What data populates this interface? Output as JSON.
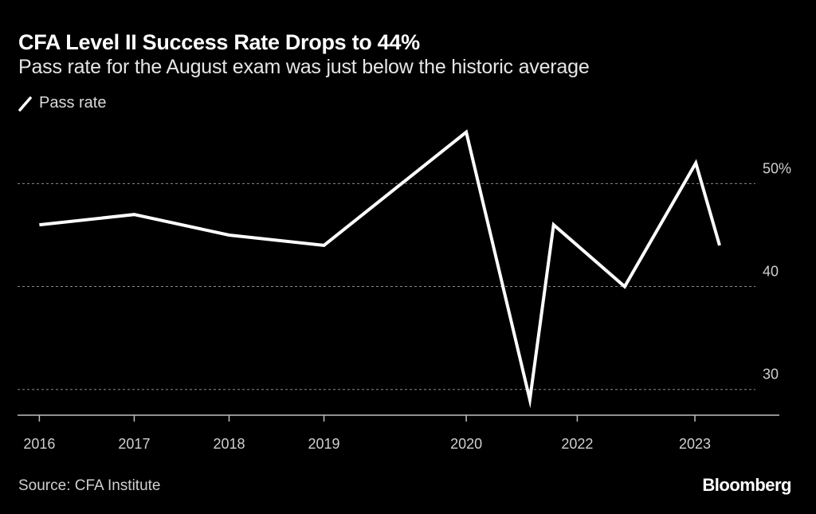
{
  "header": {
    "title": "CFA Level II Success Rate Drops to 44%",
    "subtitle": "Pass rate for the August exam was just below the historic average"
  },
  "footer": {
    "source": "Source: CFA Institute",
    "brand": "Bloomberg"
  },
  "colors": {
    "background": "#000000",
    "line": "#ffffff",
    "grid": "#8c8c8c",
    "text_muted": "#cfcfcf"
  },
  "chart_data": {
    "type": "line",
    "title": "CFA Level II Success Rate Drops to 44%",
    "subtitle": "Pass rate for the August exam was just below the historic average",
    "xlabel": "",
    "ylabel": "",
    "legend": {
      "entries": [
        "Pass rate"
      ],
      "placement": "top-left"
    },
    "grid": true,
    "y_axis": {
      "side": "right",
      "ticks": [
        30,
        40,
        50
      ],
      "tick_labels": [
        "30",
        "40",
        "50%"
      ],
      "ylim": [
        27.5,
        57
      ]
    },
    "x_axis": {
      "ticks": [
        2016.0,
        2017.0,
        2018.0,
        2019.0,
        2020.5,
        2021.67,
        2022.91
      ],
      "tick_labels": [
        "2016",
        "2017",
        "2018",
        "2019",
        "2020",
        "2022",
        "2023"
      ],
      "xlim": [
        2015.77,
        2023.8
      ]
    },
    "series": [
      {
        "name": "Pass rate",
        "x": [
          2016.0,
          2017.0,
          2018.0,
          2019.0,
          2020.5,
          2021.17,
          2021.42,
          2022.17,
          2022.92,
          2023.17
        ],
        "values": [
          46,
          47,
          45,
          44,
          55,
          29,
          46,
          40,
          52,
          44
        ]
      }
    ]
  }
}
